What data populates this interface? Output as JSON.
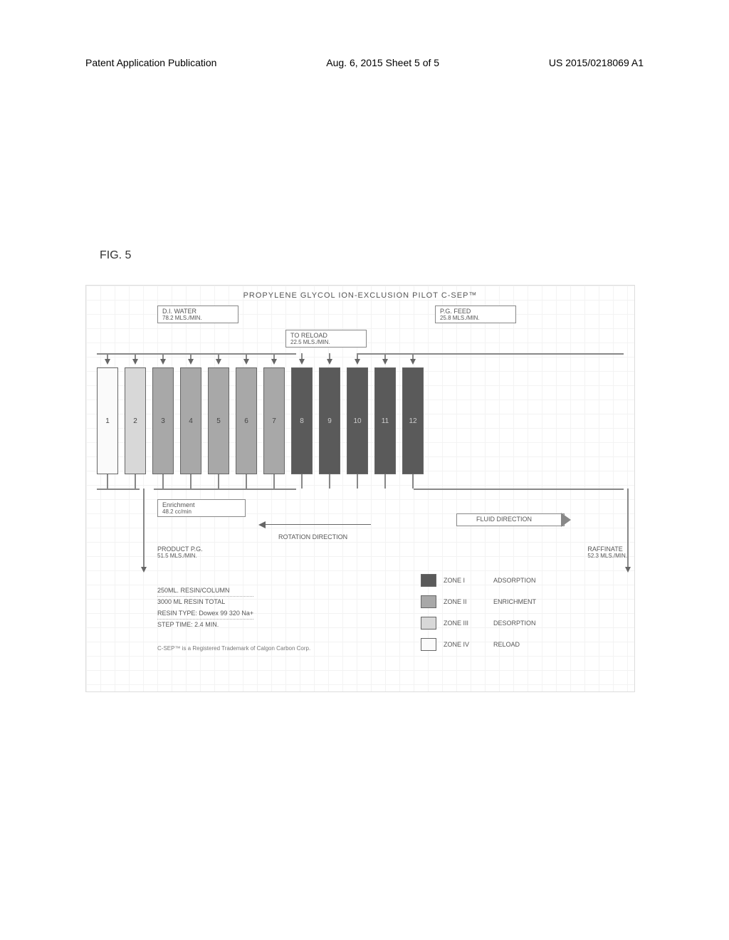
{
  "header": {
    "left": "Patent Application Publication",
    "center": "Aug. 6, 2015  Sheet 5 of 5",
    "right": "US 2015/0218069 A1"
  },
  "figure_label": "FIG. 5",
  "diagram": {
    "title": "PROPYLENE GLYCOL ION-EXCLUSION PILOT C-SEP™",
    "di_water": {
      "label": "D.I. WATER",
      "rate": "78.2 MLS./MIN."
    },
    "pg_feed": {
      "label": "P.G. FEED",
      "rate": "25.8 MLS./MIN."
    },
    "to_reload": {
      "label": "TO RELOAD",
      "rate": "22.5 MLS./MIN."
    },
    "enrichment": {
      "label": "Enrichment",
      "rate": "48.2 cc/min"
    },
    "product": {
      "label": "PRODUCT P.G.",
      "rate": "51.5 MLS./MIN."
    },
    "raffinate": {
      "label": "RAFFINATE",
      "rate": "52.3 MLS./MIN."
    },
    "rotation_label": "ROTATION DIRECTION",
    "fluid_label": "FLUID DIRECTION",
    "columns": [
      {
        "num": "1",
        "zone": "zone4"
      },
      {
        "num": "2",
        "zone": "zone3"
      },
      {
        "num": "3",
        "zone": "zone2"
      },
      {
        "num": "4",
        "zone": "zone2"
      },
      {
        "num": "5",
        "zone": "zone2"
      },
      {
        "num": "6",
        "zone": "zone2"
      },
      {
        "num": "7",
        "zone": "zone2"
      },
      {
        "num": "8",
        "zone": "zone1"
      },
      {
        "num": "9",
        "zone": "zone1"
      },
      {
        "num": "10",
        "zone": "zone1"
      },
      {
        "num": "11",
        "zone": "zone1"
      },
      {
        "num": "12",
        "zone": "zone1"
      }
    ],
    "legend": [
      {
        "zone": "zone1",
        "code": "ZONE I",
        "name": "ADSORPTION"
      },
      {
        "zone": "zone2",
        "code": "ZONE II",
        "name": "ENRICHMENT"
      },
      {
        "zone": "zone3",
        "code": "ZONE III",
        "name": "DESORPTION"
      },
      {
        "zone": "zone4",
        "code": "ZONE IV",
        "name": "RELOAD"
      }
    ],
    "specs": {
      "line1": "250ML. RESIN/COLUMN",
      "line2": "3000 ML RESIN TOTAL",
      "line3": "RESIN TYPE:  Dowex 99 320 Na+",
      "line4": "STEP TIME:  2.4 MIN."
    },
    "trademark": "C-SEP™ is a Registered Trademark of Calgon Carbon Corp."
  }
}
